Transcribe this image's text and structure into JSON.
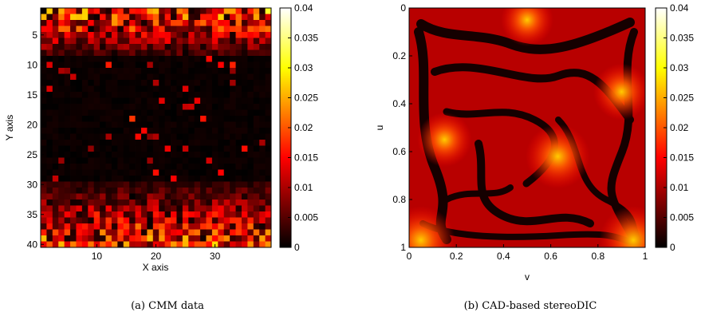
{
  "chart_data": [
    {
      "type": "heatmap",
      "caption": "(a) CMM data",
      "xlabel": "X axis",
      "ylabel": "Y axis",
      "x_ticks": [
        10,
        20,
        30
      ],
      "y_ticks": [
        5,
        10,
        15,
        20,
        25,
        30,
        35,
        40
      ],
      "xlim": [
        0.5,
        39.5
      ],
      "ylim": [
        0.5,
        40.5
      ],
      "grid_cols": 39,
      "grid_rows": 40,
      "y_reversed": true,
      "colormap": "hot",
      "clim": [
        0,
        0.04
      ],
      "colorbar_ticks": [
        "0",
        "0.005",
        "0.01",
        "0.015",
        "0.02",
        "0.025",
        "0.03",
        "0.035",
        "0.04"
      ],
      "pattern": "High error (0.01-0.04) concentrated in top rows 1-8 and bottom rows 30-40; interior rows 9-29 near 0 with sparse isolated values",
      "grid": false
    },
    {
      "type": "heatmap",
      "caption": "(b) CAD-based stereoDIC",
      "xlabel": "v",
      "ylabel": "u",
      "x_ticks": [
        "0",
        "0.2",
        "0.4",
        "0.6",
        "0.8",
        "1"
      ],
      "y_ticks": [
        "0",
        "0.2",
        "0.4",
        "0.6",
        "0.8",
        "1"
      ],
      "xlim": [
        0,
        1
      ],
      "ylim": [
        0,
        1
      ],
      "y_reversed": true,
      "colormap": "hot",
      "clim": [
        0,
        0.04
      ],
      "colorbar_ticks": [
        "0",
        "0.005",
        "0.01",
        "0.015",
        "0.02",
        "0.025",
        "0.03",
        "0.035",
        "0.04"
      ],
      "hotspots": [
        {
          "u": 0.62,
          "v": 0.63,
          "value": 0.018
        },
        {
          "u": 0.35,
          "v": 0.9,
          "value": 0.014
        },
        {
          "u": 0.05,
          "v": 0.5,
          "value": 0.012
        },
        {
          "u": 0.55,
          "v": 0.15,
          "value": 0.013
        },
        {
          "u": 0.97,
          "v": 0.05,
          "value": 0.02
        },
        {
          "u": 0.97,
          "v": 0.95,
          "value": 0.02
        }
      ],
      "grid": false
    }
  ],
  "colors": {
    "background": "#ffffff",
    "axis": "#000000"
  }
}
